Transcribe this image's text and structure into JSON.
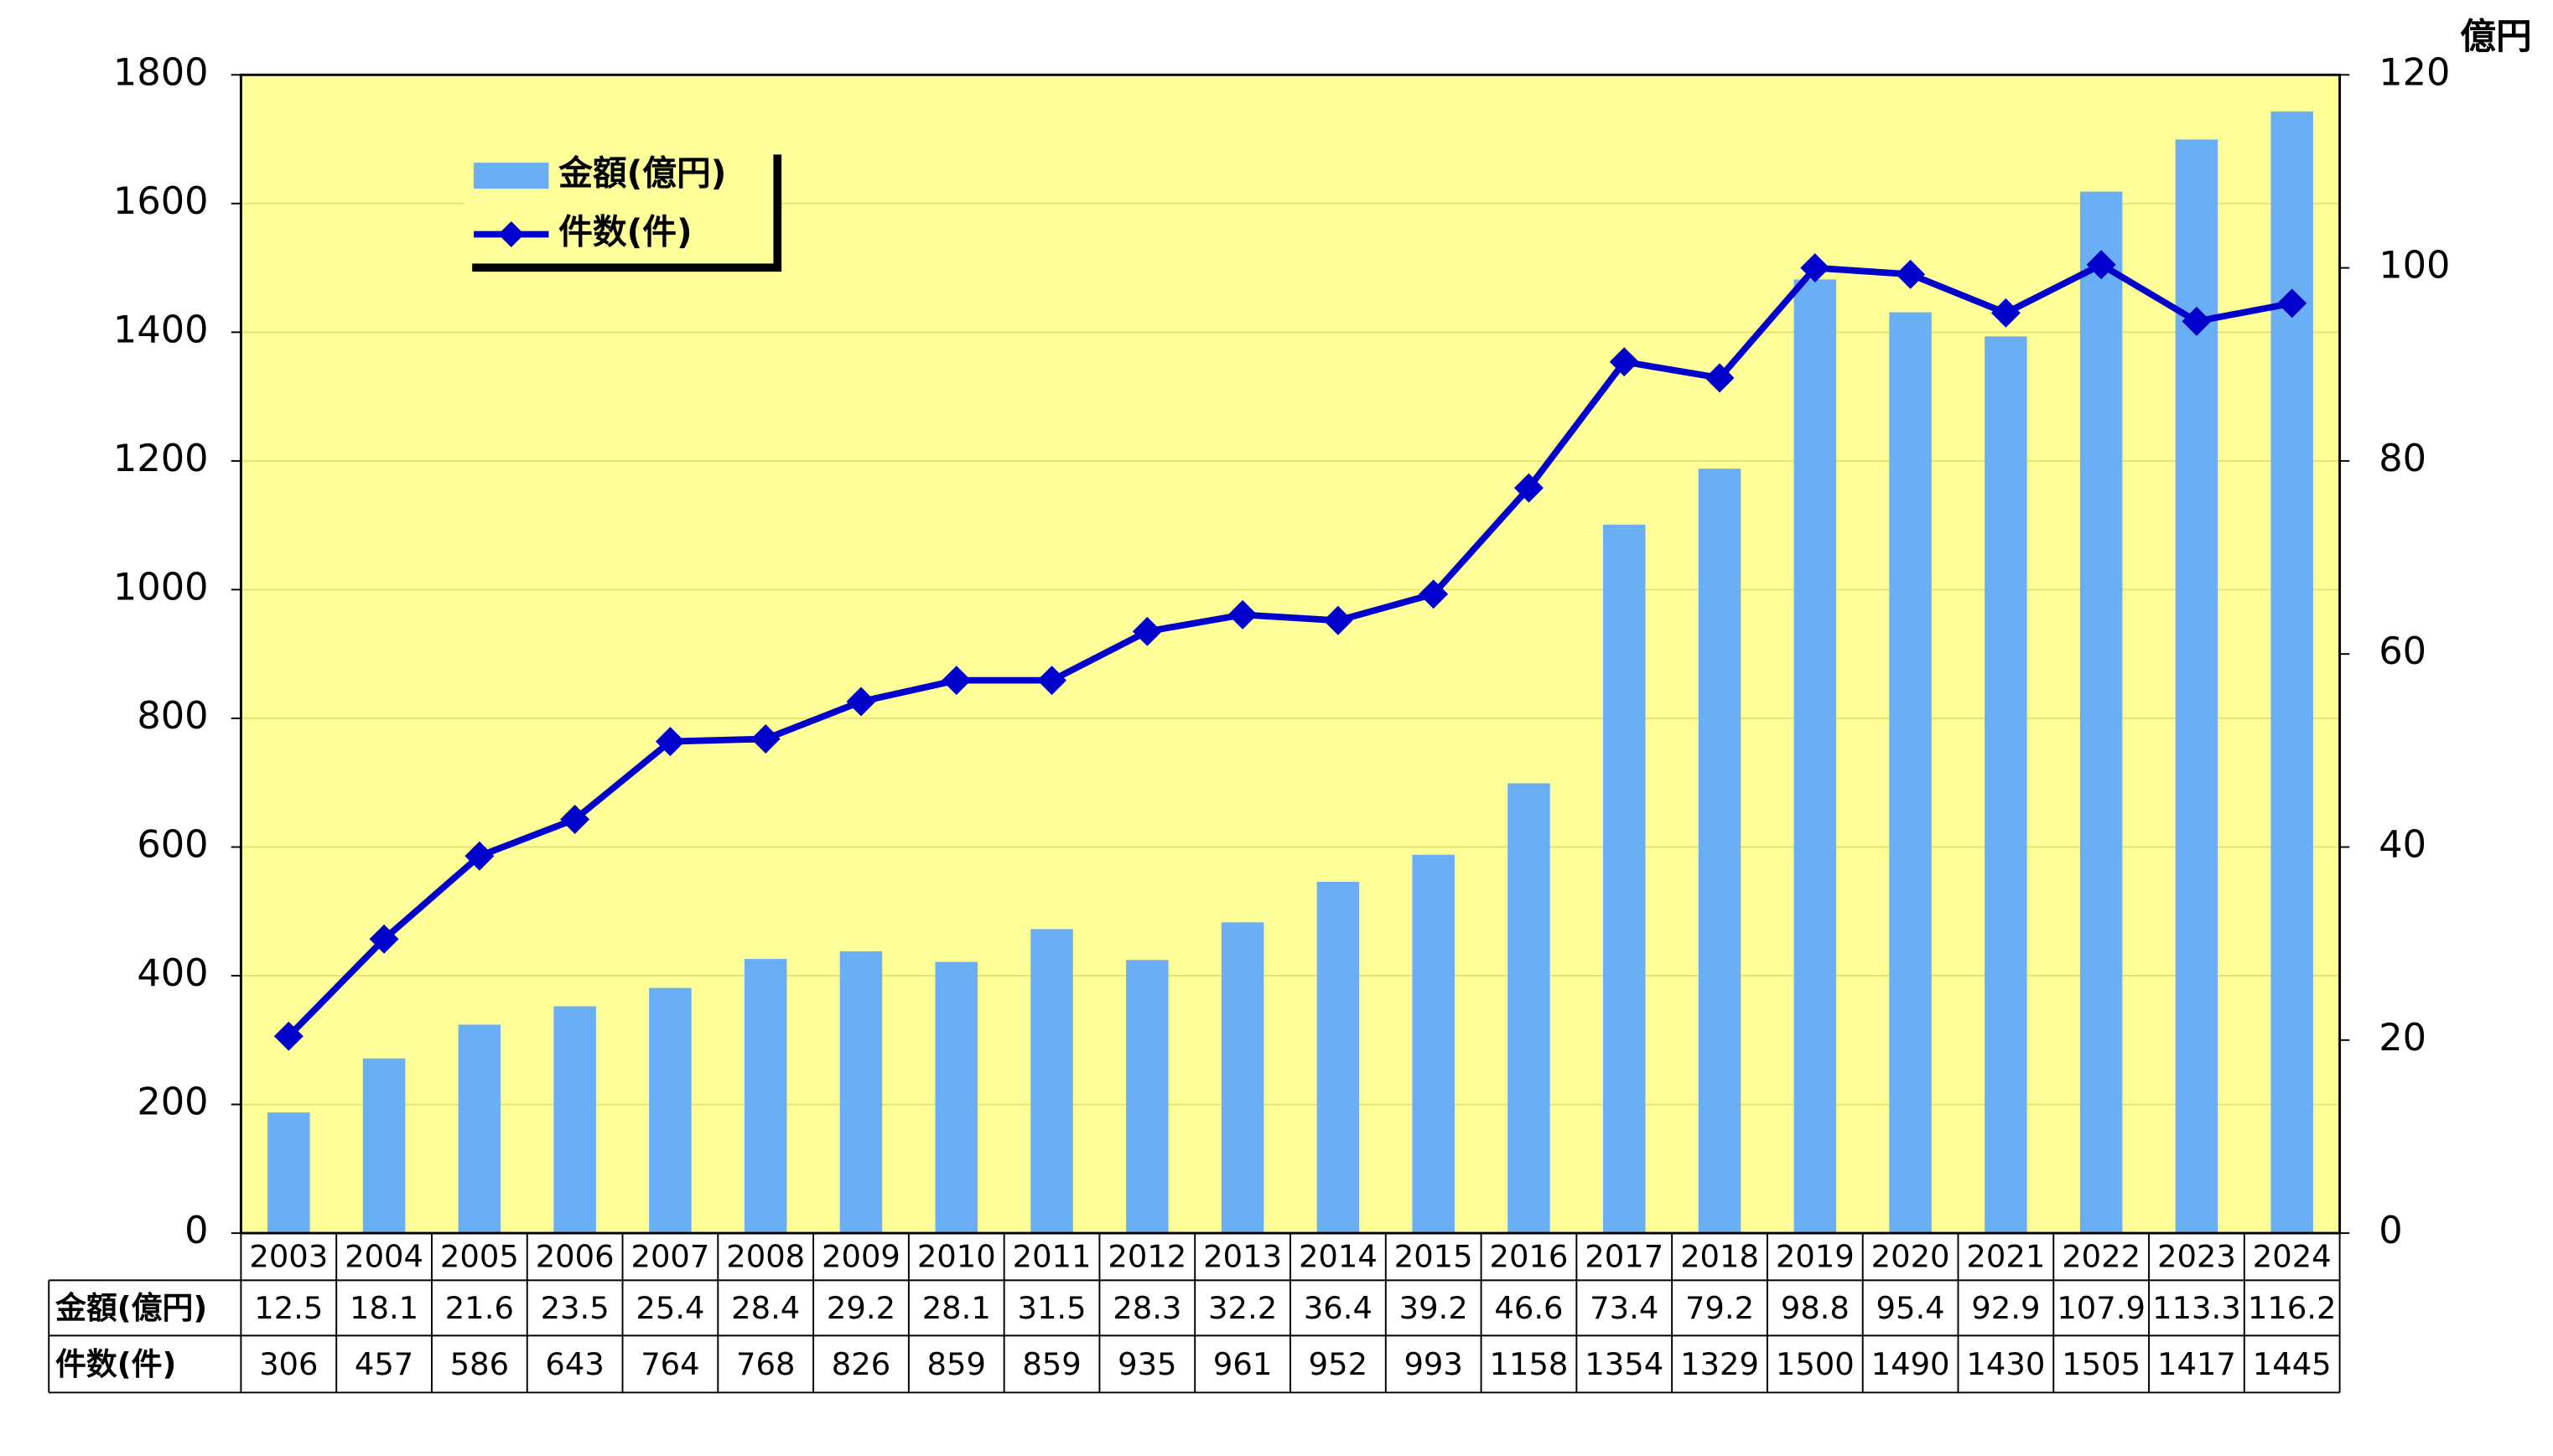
{
  "chart_data": {
    "type": "bar",
    "y2_label": "億円",
    "categories": [
      "2003",
      "2004",
      "2005",
      "2006",
      "2007",
      "2008",
      "2009",
      "2010",
      "2011",
      "2012",
      "2013",
      "2014",
      "2015",
      "2016",
      "2017",
      "2018",
      "2019",
      "2020",
      "2021",
      "2022",
      "2023",
      "2024"
    ],
    "series": [
      {
        "name": "金額(億円)",
        "type": "bar",
        "axis": "y2",
        "color": "#6aaef5",
        "values": [
          12.5,
          18.1,
          21.6,
          23.5,
          25.4,
          28.4,
          29.2,
          28.1,
          31.5,
          28.3,
          32.2,
          36.4,
          39.2,
          46.6,
          73.4,
          79.2,
          98.8,
          95.4,
          92.9,
          107.9,
          113.3,
          116.2
        ]
      },
      {
        "name": "件数(件)",
        "type": "line",
        "axis": "y",
        "color": "#0000cc",
        "values": [
          306,
          457,
          586,
          643,
          764,
          768,
          826,
          859,
          859,
          935,
          961,
          952,
          993,
          1158,
          1354,
          1329,
          1500,
          1490,
          1430,
          1505,
          1417,
          1445
        ]
      }
    ],
    "ylim": [
      0,
      1800
    ],
    "yticks": [
      0,
      200,
      400,
      600,
      800,
      1000,
      1200,
      1400,
      1600,
      1800
    ],
    "y2lim": [
      0,
      120
    ],
    "y2ticks": [
      0,
      20,
      40,
      60,
      80,
      100,
      120
    ],
    "grid": true,
    "legend": "top-left",
    "data_table": true
  }
}
